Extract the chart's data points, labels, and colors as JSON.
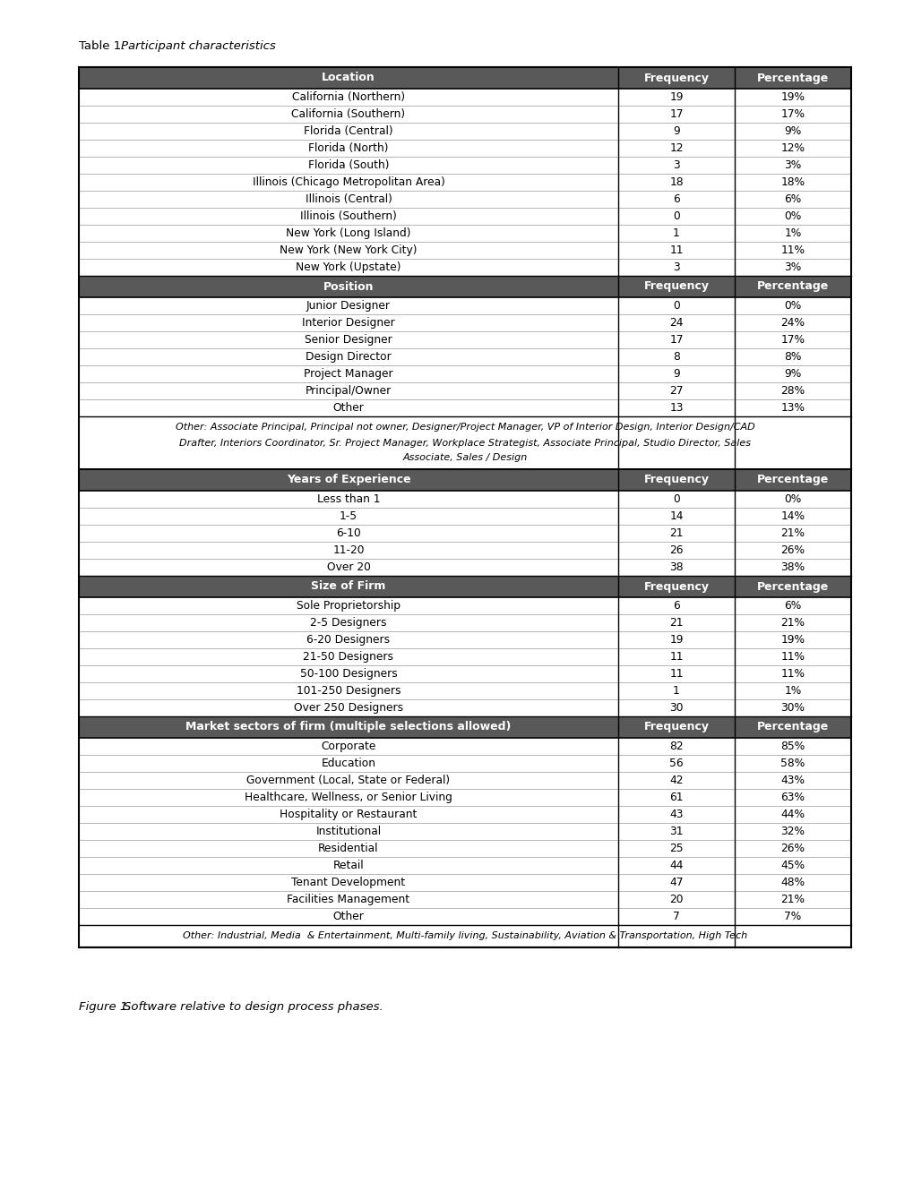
{
  "table_title_normal": "Table 1.  ",
  "table_title_italic": "Participant characteristics",
  "figure_caption_normal": "Figure 1.  ",
  "figure_caption_italic": "Software relative to design process phases.",
  "header_bg": "#595959",
  "header_fg": "#ffffff",
  "sections": [
    {
      "header": "Location",
      "rows": [
        [
          "California (Northern)",
          "19",
          "19%"
        ],
        [
          "California (Southern)",
          "17",
          "17%"
        ],
        [
          "Florida (Central)",
          "9",
          "9%"
        ],
        [
          "Florida (North)",
          "12",
          "12%"
        ],
        [
          "Florida (South)",
          "3",
          "3%"
        ],
        [
          "Illinois (Chicago Metropolitan Area)",
          "18",
          "18%"
        ],
        [
          "Illinois (Central)",
          "6",
          "6%"
        ],
        [
          "Illinois (Southern)",
          "0",
          "0%"
        ],
        [
          "New York (Long Island)",
          "1",
          "1%"
        ],
        [
          "New York (New York City)",
          "11",
          "11%"
        ],
        [
          "New York (Upstate)",
          "3",
          "3%"
        ]
      ],
      "note": null
    },
    {
      "header": "Position",
      "rows": [
        [
          "Junior Designer",
          "0",
          "0%"
        ],
        [
          "Interior Designer",
          "24",
          "24%"
        ],
        [
          "Senior Designer",
          "17",
          "17%"
        ],
        [
          "Design Director",
          "8",
          "8%"
        ],
        [
          "Project Manager",
          "9",
          "9%"
        ],
        [
          "Principal/Owner",
          "27",
          "28%"
        ],
        [
          "Other",
          "13",
          "13%"
        ]
      ],
      "note": "Other: Associate Principal, Principal not owner, Designer/Project Manager, VP of Interior Design, Interior Design/CAD\nDrafter, Interiors Coordinator, Sr. Project Manager, Workplace Strategist, Associate Principal, Studio Director, Sales\nAssociate, Sales / Design"
    },
    {
      "header": "Years of Experience",
      "rows": [
        [
          "Less than 1",
          "0",
          "0%"
        ],
        [
          "1-5",
          "14",
          "14%"
        ],
        [
          "6-10",
          "21",
          "21%"
        ],
        [
          "11-20",
          "26",
          "26%"
        ],
        [
          "Over 20",
          "38",
          "38%"
        ]
      ],
      "note": null
    },
    {
      "header": "Size of Firm",
      "rows": [
        [
          "Sole Proprietorship",
          "6",
          "6%"
        ],
        [
          "2-5 Designers",
          "21",
          "21%"
        ],
        [
          "6-20 Designers",
          "19",
          "19%"
        ],
        [
          "21-50 Designers",
          "11",
          "11%"
        ],
        [
          "50-100 Designers",
          "11",
          "11%"
        ],
        [
          "101-250 Designers",
          "1",
          "1%"
        ],
        [
          "Over 250 Designers",
          "30",
          "30%"
        ]
      ],
      "note": null
    },
    {
      "header": "Market sectors of firm (multiple selections allowed)",
      "rows": [
        [
          "Corporate",
          "82",
          "85%"
        ],
        [
          "Education",
          "56",
          "58%"
        ],
        [
          "Government (Local, State or Federal)",
          "42",
          "43%"
        ],
        [
          "Healthcare, Wellness, or Senior Living",
          "61",
          "63%"
        ],
        [
          "Hospitality or Restaurant",
          "43",
          "44%"
        ],
        [
          "Institutional",
          "31",
          "32%"
        ],
        [
          "Residential",
          "25",
          "26%"
        ],
        [
          "Retail",
          "44",
          "45%"
        ],
        [
          "Tenant Development",
          "47",
          "48%"
        ],
        [
          "Facilities Management",
          "20",
          "21%"
        ],
        [
          "Other",
          "7",
          "7%"
        ]
      ],
      "note": "Other: Industrial, Media  & Entertainment, Multi-family living, Sustainability, Aviation & Transportation, High Tech"
    }
  ]
}
